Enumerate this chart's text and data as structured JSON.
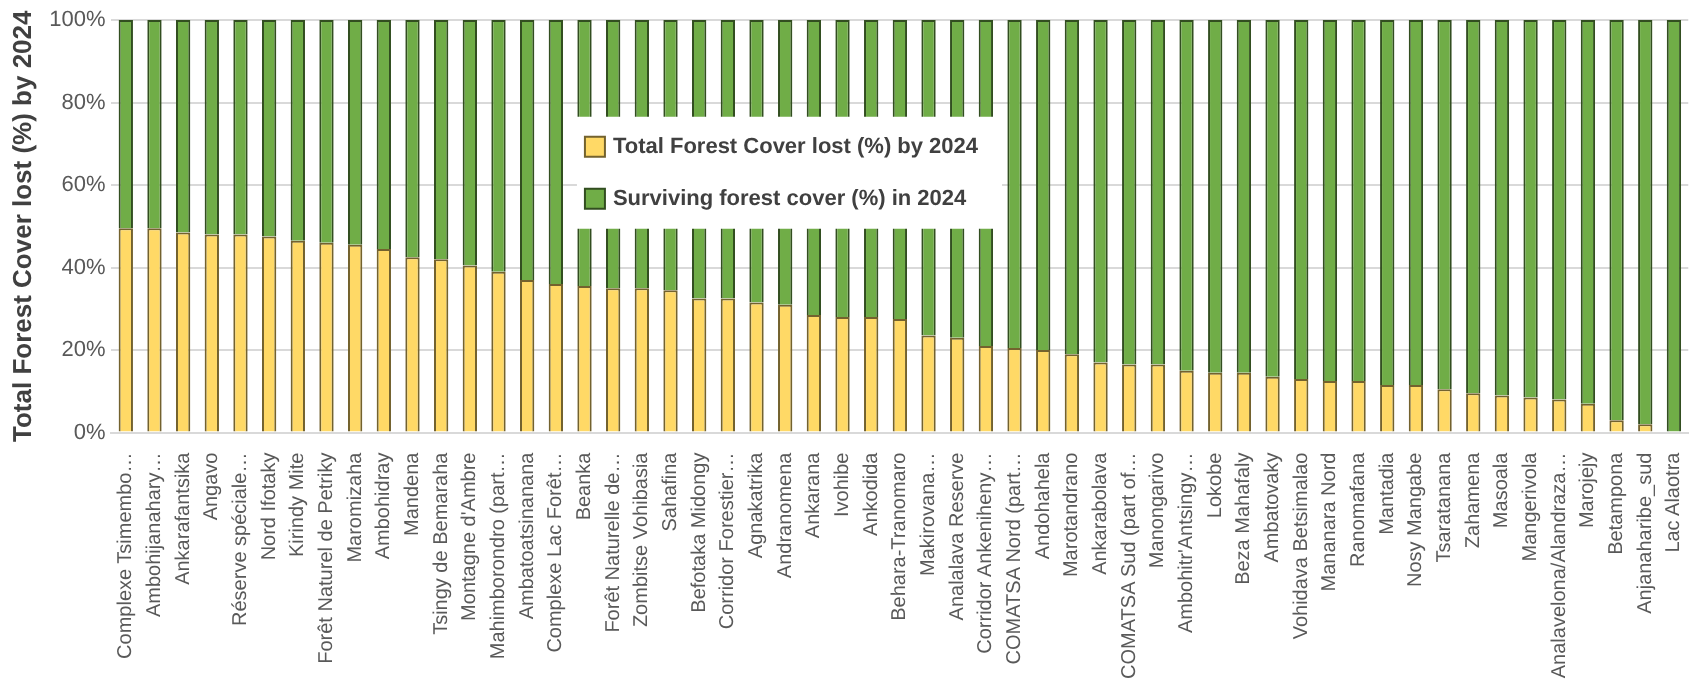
{
  "chart_data": {
    "type": "bar",
    "stacked": true,
    "ylabel": "Total Forest Cover lost (%) by 2024",
    "categories": [
      "Complexe Tsimembo…",
      "Ambohijanahary…",
      "Ankarafantsika",
      "Angavo",
      "Réserve spéciale…",
      "Nord Ifotaky",
      "Kirindy Mite",
      "Forêt Naturel de Petriky",
      "Maromizaha",
      "Ambohidray",
      "Mandena",
      "Tsingy de Bemaraha",
      "Montagne d'Ambre",
      "Mahimborondro (part…",
      "Ambatoatsinanana",
      "Complexe Lac Forêt…",
      "Beanka",
      "Forêt Naturelle de…",
      "Zombitse Vohibasia",
      "Sahafina",
      "Befotaka Midongy",
      "Corridor Forestier…",
      "Agnakatrika",
      "Andranomena",
      "Ankarana",
      "Ivohibe",
      "Ankodida",
      "Behara-Tranomaro",
      "Makirovana…",
      "Analalava Reserve",
      "Corridor Ankeniheny…",
      "COMATSA Nord (part…",
      "Andohahela",
      "Marotandrano",
      "Ankarabolava",
      "COMATSA Sud (part of…",
      "Manongarivo",
      "Ambohitr'Antsingy…",
      "Lokobe",
      "Beza Mahafaly",
      "Ambatovaky",
      "Vohidava Betsimalao",
      "Mananara Nord",
      "Ranomafana",
      "Mantadia",
      "Nosy Mangabe",
      "Tsaratanana",
      "Zahamena",
      "Masoala",
      "Mangerivola",
      "Analavelona/Alandraza…",
      "Marojejy",
      "Betampona",
      "Anjanaharibe_sud",
      "Lac Alaotra"
    ],
    "series": [
      {
        "name": "Total Forest Cover lost (%) by 2024",
        "color": "#ffd966",
        "values": [
          49.5,
          49.5,
          48.5,
          48,
          48,
          47.5,
          46.5,
          46,
          45.5,
          44.5,
          42.5,
          42,
          40.5,
          39,
          37,
          36,
          35.5,
          35,
          35,
          34.5,
          32.5,
          32.5,
          31.5,
          31,
          28.5,
          28,
          28,
          27.5,
          23.5,
          23,
          21,
          20.5,
          20,
          19,
          17,
          16.5,
          16.5,
          15,
          14.5,
          14.5,
          13.5,
          13,
          12.5,
          12.5,
          11.5,
          11.5,
          10.5,
          9.5,
          9,
          8.5,
          8,
          7,
          3,
          2,
          0
        ]
      },
      {
        "name": "Surviving forest cover (%) in 2024",
        "color": "#70ad47",
        "values": [
          50.5,
          50.5,
          51.5,
          52,
          52,
          52.5,
          53.5,
          54,
          54.5,
          55.5,
          57.5,
          58,
          59.5,
          61,
          63,
          64,
          64.5,
          65,
          65,
          65.5,
          67.5,
          67.5,
          68.5,
          69,
          71.5,
          72,
          72,
          72.5,
          76.5,
          77,
          79,
          79.5,
          80,
          81,
          83,
          83.5,
          83.5,
          85,
          85.5,
          85.5,
          86.5,
          87,
          87.5,
          87.5,
          88.5,
          88.5,
          89.5,
          90.5,
          91,
          91.5,
          92,
          93,
          97,
          98,
          100
        ]
      }
    ],
    "ylim": [
      0,
      100
    ],
    "yticks": [
      {
        "value": 0,
        "label": "0%"
      },
      {
        "value": 20,
        "label": "20%"
      },
      {
        "value": 40,
        "label": "40%"
      },
      {
        "value": 60,
        "label": "60%"
      },
      {
        "value": 80,
        "label": "80%"
      },
      {
        "value": 100,
        "label": "100%"
      }
    ],
    "grid": "y",
    "legend": "center"
  }
}
